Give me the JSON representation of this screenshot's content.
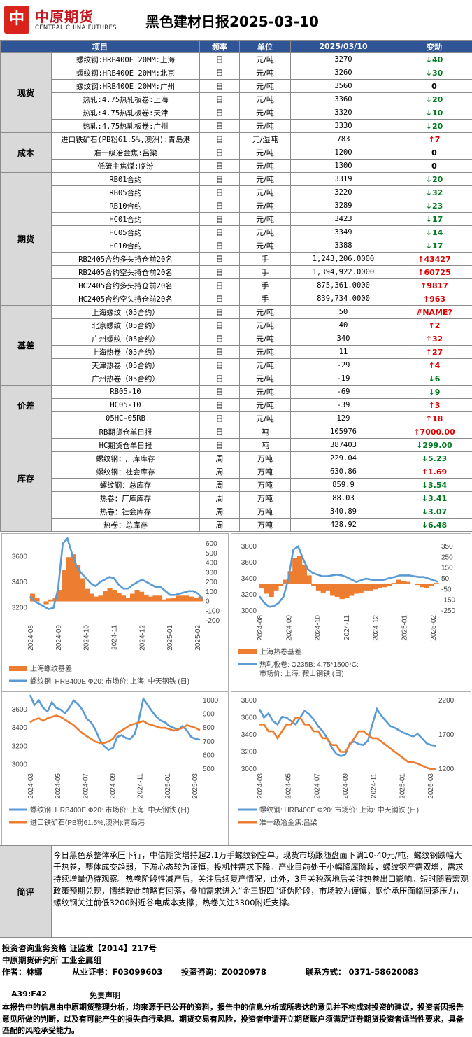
{
  "header": {
    "logo_text": "中原期货",
    "logo_en": "CENTRAL CHINA FUTURES",
    "title": "黑色建材日报2025-03-10"
  },
  "table": {
    "headers": [
      "项目",
      "频率",
      "单位",
      "2025/03/10",
      "变动"
    ],
    "groups": [
      {
        "name": "现货",
        "rows": [
          {
            "item": "螺纹钢:HRB400E 20MM:上海",
            "freq": "日",
            "unit": "元/吨",
            "value": "3270",
            "dir": "down",
            "change": "40"
          },
          {
            "item": "螺纹钢:HRB400E 20MM:北京",
            "freq": "日",
            "unit": "元/吨",
            "value": "3260",
            "dir": "down",
            "change": "30"
          },
          {
            "item": "螺纹钢:HRB400E 20MM:广州",
            "freq": "日",
            "unit": "元/吨",
            "value": "3560",
            "dir": "flat",
            "change": "0"
          },
          {
            "item": "热轧:4.75热轧板卷:上海",
            "freq": "日",
            "unit": "元/吨",
            "value": "3360",
            "dir": "down",
            "change": "20"
          },
          {
            "item": "热轧:4.75热轧板卷:天津",
            "freq": "日",
            "unit": "元/吨",
            "value": "3320",
            "dir": "down",
            "change": "10"
          },
          {
            "item": "热轧:4.75热轧板卷:广州",
            "freq": "日",
            "unit": "元/吨",
            "value": "3330",
            "dir": "down",
            "change": "20"
          }
        ]
      },
      {
        "name": "成本",
        "rows": [
          {
            "item": "进口铁矿石(PB粉61.5%,澳洲):青岛港",
            "freq": "日",
            "unit": "元/湿吨",
            "value": "783",
            "dir": "up",
            "change": "7"
          },
          {
            "item": "准一级冶金焦:吕梁",
            "freq": "日",
            "unit": "元/吨",
            "value": "1200",
            "dir": "flat",
            "change": "0"
          },
          {
            "item": "低硫主焦煤:临汾",
            "freq": "日",
            "unit": "元/吨",
            "value": "1300",
            "dir": "flat",
            "change": "0"
          }
        ]
      },
      {
        "name": "期货",
        "rows": [
          {
            "item": "RB01合约",
            "freq": "日",
            "unit": "元/吨",
            "value": "3319",
            "dir": "down",
            "change": "20"
          },
          {
            "item": "RB05合约",
            "freq": "日",
            "unit": "元/吨",
            "value": "3220",
            "dir": "down",
            "change": "32"
          },
          {
            "item": "RB10合约",
            "freq": "日",
            "unit": "元/吨",
            "value": "3289",
            "dir": "down",
            "change": "23"
          },
          {
            "item": "HC01合约",
            "freq": "日",
            "unit": "元/吨",
            "value": "3423",
            "dir": "down",
            "change": "17"
          },
          {
            "item": "HC05合约",
            "freq": "日",
            "unit": "元/吨",
            "value": "3349",
            "dir": "down",
            "change": "14"
          },
          {
            "item": "HC10合约",
            "freq": "日",
            "unit": "元/吨",
            "value": "3388",
            "dir": "down",
            "change": "17"
          },
          {
            "item": "RB2405合约多头持仓前20名",
            "freq": "日",
            "unit": "手",
            "value": "1,243,206.0000",
            "dir": "up",
            "change": "43427"
          },
          {
            "item": "RB2405合约空头持仓前20名",
            "freq": "日",
            "unit": "手",
            "value": "1,394,922.0000",
            "dir": "up",
            "change": "60725"
          },
          {
            "item": "HC2405合约多头持仓前20名",
            "freq": "日",
            "unit": "手",
            "value": "875,361.0000",
            "dir": "up",
            "change": "9817"
          },
          {
            "item": "HC2405合约空头持仓前20名",
            "freq": "日",
            "unit": "手",
            "value": "839,734.0000",
            "dir": "up",
            "change": "963"
          }
        ]
      },
      {
        "name": "基差",
        "rows": [
          {
            "item": "上海螺纹（05合约）",
            "freq": "日",
            "unit": "元/吨",
            "value": "50",
            "dir": "name",
            "change": "#NAME?"
          },
          {
            "item": "北京螺纹（05合约）",
            "freq": "日",
            "unit": "元/吨",
            "value": "40",
            "dir": "up",
            "change": "2"
          },
          {
            "item": "广州螺纹（05合约）",
            "freq": "日",
            "unit": "元/吨",
            "value": "340",
            "dir": "up",
            "change": "32"
          },
          {
            "item": "上海热卷（05合约）",
            "freq": "日",
            "unit": "元/吨",
            "value": "11",
            "dir": "up",
            "change": "27"
          },
          {
            "item": "天津热卷（05合约）",
            "freq": "日",
            "unit": "元/吨",
            "value": "-29",
            "dir": "up",
            "change": "4"
          },
          {
            "item": "广州热卷（05合约）",
            "freq": "日",
            "unit": "元/吨",
            "value": "-19",
            "dir": "down",
            "change": "6"
          }
        ]
      },
      {
        "name": "价差",
        "rows": [
          {
            "item": "RB05-10",
            "freq": "日",
            "unit": "元/吨",
            "value": "-69",
            "dir": "down",
            "change": "9"
          },
          {
            "item": "HC05-10",
            "freq": "日",
            "unit": "元/吨",
            "value": "-39",
            "dir": "up",
            "change": "3"
          },
          {
            "item": "05HC-05RB",
            "freq": "日",
            "unit": "元/吨",
            "value": "129",
            "dir": "up",
            "change": "18"
          }
        ]
      },
      {
        "name": "库存",
        "rows": [
          {
            "item": "RB期货仓单日报",
            "freq": "日",
            "unit": "吨",
            "value": "105976",
            "dir": "up",
            "change": "7000.00"
          },
          {
            "item": "HC期货仓单日报",
            "freq": "日",
            "unit": "吨",
            "value": "387403",
            "dir": "down",
            "change": "299.00"
          },
          {
            "item": "螺纹钢：厂库库存",
            "freq": "周",
            "unit": "万吨",
            "value": "229.04",
            "dir": "down",
            "change": "5.23"
          },
          {
            "item": "螺纹钢：社会库存",
            "freq": "周",
            "unit": "万吨",
            "value": "630.86",
            "dir": "up",
            "change": "1.69"
          },
          {
            "item": "螺纹钢：总库存",
            "freq": "周",
            "unit": "万吨",
            "value": "859.9",
            "dir": "down",
            "change": "3.54"
          },
          {
            "item": "热卷：厂库库存",
            "freq": "周",
            "unit": "万吨",
            "value": "88.03",
            "dir": "down",
            "change": "3.41"
          },
          {
            "item": "热卷：社会库存",
            "freq": "周",
            "unit": "万吨",
            "value": "340.89",
            "dir": "down",
            "change": "3.07"
          },
          {
            "item": "热卷：总库存",
            "freq": "周",
            "unit": "万吨",
            "value": "428.92",
            "dir": "down",
            "change": "6.48"
          }
        ]
      }
    ]
  },
  "chart_data": [
    {
      "type": "line",
      "bar_series": {
        "name": "上海螺纹基差",
        "color": "#ed7d31"
      },
      "line_series": {
        "name": "螺纹钢: HRB400E Φ20: 市场价: 上海: 中天钢铁 (日)",
        "color": "#5b9bd5"
      },
      "x_ticks": [
        "2024-08",
        "2024-09",
        "2024-10",
        "2024-11",
        "2024-12",
        "2025-01",
        "2025-02"
      ],
      "y_left_ticks": [
        "3600",
        "3400",
        "3200"
      ],
      "y_right_ticks": [
        "600",
        "500",
        "400",
        "300",
        "200",
        "100",
        "0",
        "-100",
        "-200"
      ],
      "line_values": [
        3290,
        3250,
        3230,
        3210,
        3190,
        3200,
        3350,
        3700,
        3740,
        3620,
        3520,
        3470,
        3430,
        3390,
        3370,
        3400,
        3420,
        3440,
        3430,
        3380,
        3350,
        3350,
        3380,
        3400,
        3420,
        3400,
        3380,
        3360,
        3360,
        3330,
        3300,
        3300,
        3310,
        3320,
        3330,
        3330,
        3310,
        3270
      ],
      "bar_values": [
        80,
        40,
        0,
        -30,
        20,
        40,
        120,
        330,
        460,
        490,
        380,
        240,
        130,
        80,
        50,
        60,
        110,
        140,
        120,
        90,
        60,
        40,
        80,
        120,
        100,
        70,
        50,
        60,
        60,
        20,
        30,
        40,
        60,
        60,
        60,
        50,
        40,
        50
      ]
    },
    {
      "type": "line",
      "bar_series": {
        "name": "上海热卷基差",
        "color": "#ed7d31"
      },
      "line_series": {
        "name": "热轧板卷: Q235B: 4.75*1500*C: 市场价: 上海: 鞍山钢铁 (日)",
        "color": "#5b9bd5"
      },
      "x_ticks": [
        "2024-08",
        "2024-09",
        "2024-10",
        "2024-11",
        "2024-12",
        "2025-01",
        "2025-02"
      ],
      "y_left_ticks": [
        "3800",
        "3600",
        "3400",
        "3200",
        "3000"
      ],
      "y_right_ticks": [
        "350",
        "250",
        "150",
        "50",
        "-50",
        "-150",
        "-250"
      ],
      "line_values": [
        3180,
        3100,
        3050,
        3060,
        3100,
        3180,
        3400,
        3760,
        3800,
        3650,
        3520,
        3470,
        3450,
        3430,
        3430,
        3440,
        3450,
        3440,
        3420,
        3390,
        3360,
        3380,
        3400,
        3390,
        3380,
        3380,
        3390,
        3410,
        3420,
        3440,
        3440,
        3440,
        3430,
        3420,
        3420,
        3400,
        3380,
        3360
      ],
      "bar_values": [
        -40,
        -90,
        -120,
        -60,
        -20,
        40,
        120,
        240,
        260,
        180,
        80,
        -20,
        -60,
        -80,
        -60,
        -110,
        -120,
        -140,
        -130,
        -110,
        -90,
        -80,
        -60,
        -60,
        -50,
        -40,
        -30,
        -20,
        10,
        40,
        30,
        20,
        0,
        -10,
        -30,
        -40,
        -20,
        10
      ]
    },
    {
      "type": "line",
      "series": [
        {
          "name": "螺纹钢: HRB400E Φ20: 市场价: 上海: 中天钢铁 (日)",
          "color": "#5b9bd5",
          "axis": "left",
          "values": [
            3760,
            3650,
            3700,
            3620,
            3580,
            3680,
            3620,
            3600,
            3560,
            3620,
            3700,
            3660,
            3600,
            3500,
            3460,
            3380,
            3270,
            3200,
            3160,
            3180,
            3300,
            3320,
            3290,
            3280,
            3330,
            3500,
            3720,
            3650,
            3580,
            3520,
            3480,
            3460,
            3420,
            3400,
            3380,
            3420,
            3370,
            3300,
            3280,
            3270
          ]
        },
        {
          "name": "进口铁矿石(PB粉61.5%,澳洲):青岛港",
          "color": "#ed7d31",
          "axis": "right",
          "values": [
            840,
            860,
            870,
            850,
            870,
            880,
            890,
            880,
            860,
            840,
            820,
            790,
            760,
            740,
            720,
            700,
            690,
            690,
            700,
            720,
            760,
            780,
            800,
            820,
            830,
            840,
            850,
            830,
            820,
            810,
            800,
            800,
            790,
            780,
            790,
            800,
            820,
            810,
            800,
            783
          ]
        }
      ],
      "x_ticks": [
        "2024-03",
        "2024-05",
        "2024-07",
        "2024-09",
        "2024-11",
        "2025-01",
        "2025-03"
      ],
      "y_left_ticks": [
        "3600",
        "3400",
        "3200",
        "3000"
      ],
      "y_right_ticks": [
        "1000",
        "900",
        "800",
        "700",
        "600",
        "500"
      ]
    },
    {
      "type": "line",
      "series": [
        {
          "name": "螺纹钢: HRB400E Φ20: 市场价: 上海: 中天钢铁 (日)",
          "color": "#5b9bd5",
          "axis": "left",
          "values": [
            3700,
            3600,
            3650,
            3560,
            3520,
            3610,
            3600,
            3560,
            3520,
            3600,
            3680,
            3640,
            3580,
            3500,
            3440,
            3360,
            3250,
            3180,
            3150,
            3170,
            3300,
            3320,
            3290,
            3280,
            3330,
            3520,
            3700,
            3620,
            3560,
            3500,
            3480,
            3450,
            3420,
            3400,
            3380,
            3410,
            3360,
            3300,
            3280,
            3270
          ]
        },
        {
          "name": "准一级冶金焦:吕梁",
          "color": "#ed7d31",
          "axis": "right",
          "values": [
            1850,
            1850,
            1750,
            1750,
            1650,
            1750,
            1850,
            1850,
            1950,
            1950,
            1850,
            1850,
            1750,
            1750,
            1650,
            1650,
            1550,
            1550,
            1450,
            1450,
            1550,
            1650,
            1750,
            1750,
            1700,
            1650,
            1650,
            1600,
            1550,
            1500,
            1450,
            1400,
            1350,
            1300,
            1300,
            1280,
            1250,
            1220,
            1200,
            1200
          ]
        }
      ],
      "x_ticks": [
        "2024-03",
        "2024-05",
        "2024-07",
        "2024-09",
        "2024-11",
        "2025-01",
        "2025-03"
      ],
      "y_left_ticks": [
        "3800",
        "3600",
        "3400",
        "3200",
        "3000"
      ],
      "y_right_ticks": [
        "2200",
        "1700",
        "1200"
      ]
    }
  ],
  "comment": {
    "label": "简评",
    "text": "今日黑色系整体承压下行，中信期货增持超2.1万手螺纹钢空单。现货市场跟随盘面下调10-40元/吨，螺纹钢跌幅大于热卷，整体成交趋弱，下游心态较为谨慎，投机性需求下降。产业目前处于小幅降库阶段，螺纹钢产需双增，需求持续增量仍待观察。热卷阶段性减产后，关注后续复产情况，此外，3月关税落地后关注热卷出口影响。短时随着宏观政策预期兑现，情绪较此前略有回落，叠加需求进入“金三银四”证伪阶段，市场较为谨慎，钢价承压面临回落压力，螺纹钢关注前低3200附近谷电成本支撑；热卷关注3300附近支撑。"
  },
  "footer": {
    "line1": "投资咨询业务资格    证监发【2014】217号",
    "line2": "中原期货研究所    工业金属组",
    "author": "作者：林娜",
    "cert_label": "从业证书：F03099603",
    "consult": "投资咨询：Z0020978",
    "contact": "联系方式：  0371-58620083"
  },
  "disclaimer": {
    "cell_ref": "A39:F42",
    "title": "免责声明",
    "text": "本报告中的信息由中原期货整理分析，均来源于已公开的资料，报告中的信息分析或所表达的意见并不构成对投资的建议，投资者因报告意见所做的判断，以及有可能产生的损失自行承担。期货交易有风险，投资者申请开立期货账户须满足证券期货投资者适当性要求，具备匹配的风险承受能力。"
  }
}
